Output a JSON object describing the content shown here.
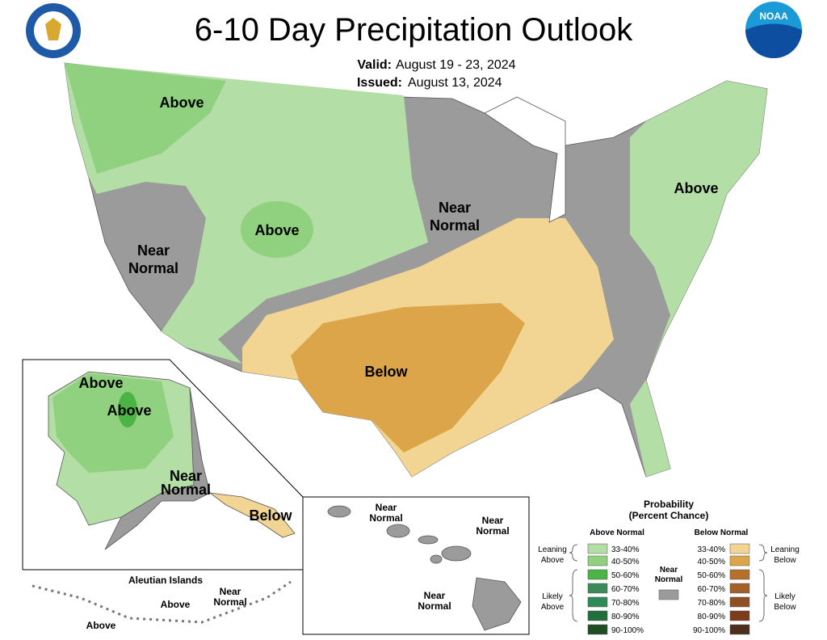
{
  "header": {
    "title": "6-10 Day Precipitation Outlook",
    "valid_label": "Valid:",
    "valid": "August 19 - 23, 2024",
    "issued_label": "Issued:",
    "issued": "August 13, 2024",
    "noaa_logo": "NOAA"
  },
  "conus_labels": {
    "above_northwest": "Above",
    "above_rockies": "Above",
    "near_normal_west": [
      "Near",
      "Normal"
    ],
    "near_normal_midwest": [
      "Near",
      "Normal"
    ],
    "below_south": "Below",
    "above_northeast": "Above"
  },
  "alaska_labels": {
    "above_west": "Above",
    "above_center": "Above",
    "near_normal": [
      "Near",
      "Normal"
    ],
    "below_southeast": "Below"
  },
  "aleutian": {
    "title": "Aleutian Islands",
    "above_east": "Above",
    "above_west": "Above",
    "near_normal": [
      "Near",
      "Normal"
    ]
  },
  "hawaii_labels": {
    "near_normal_north": [
      "Near",
      "Normal"
    ],
    "near_normal_east": [
      "Near",
      "Normal"
    ],
    "near_normal_south": [
      "Near",
      "Normal"
    ]
  },
  "legend": {
    "title": [
      "Probability",
      "(Percent Chance)"
    ],
    "above_header": "Above Normal",
    "below_header": "Below Normal",
    "near": {
      "label": [
        "Near",
        "Normal"
      ],
      "color": "#9b9b9b"
    },
    "leaning_above": [
      "Leaning",
      "Above"
    ],
    "likely_above": [
      "Likely",
      "Above"
    ],
    "leaning_below": [
      "Leaning",
      "Below"
    ],
    "likely_below": [
      "Likely",
      "Below"
    ],
    "above": [
      {
        "label": "33-40%",
        "color": "#b3dea6"
      },
      {
        "label": "40-50%",
        "color": "#8fd17f"
      },
      {
        "label": "50-60%",
        "color": "#4bb444"
      },
      {
        "label": "60-70%",
        "color": "#3a8a5a"
      },
      {
        "label": "70-80%",
        "color": "#2e8b57"
      },
      {
        "label": "80-90%",
        "color": "#21703c"
      },
      {
        "label": "90-100%",
        "color": "#1e4d24"
      }
    ],
    "below": [
      {
        "label": "33-40%",
        "color": "#f2d593"
      },
      {
        "label": "40-50%",
        "color": "#dca54a"
      },
      {
        "label": "50-60%",
        "color": "#b5702c"
      },
      {
        "label": "60-70%",
        "color": "#a2602a"
      },
      {
        "label": "70-80%",
        "color": "#8f4e24"
      },
      {
        "label": "80-90%",
        "color": "#7a3e1c"
      },
      {
        "label": "90-100%",
        "color": "#4c2f1c"
      }
    ]
  }
}
